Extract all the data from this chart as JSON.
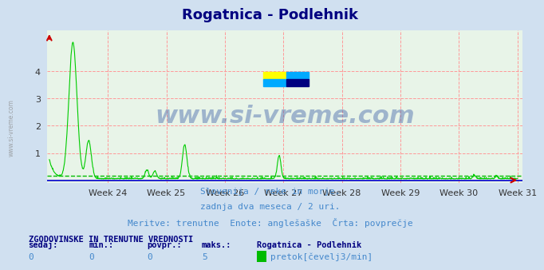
{
  "title": "Rogatnica - Podlehnik",
  "title_color": "#000080",
  "title_fontsize": 13,
  "bg_color": "#d0e0f0",
  "plot_bg_color": "#e8f4e8",
  "x_tick_labels": [
    "Week 24",
    "Week 25",
    "Week 26",
    "Week 27",
    "Week 28",
    "Week 29",
    "Week 30",
    "Week 31"
  ],
  "ylim": [
    0,
    5
  ],
  "yticks": [
    1,
    2,
    3,
    4
  ],
  "line_color": "#00cc00",
  "avg_line_color": "#00bb00",
  "avg_line_value": 0.18,
  "x_axis_color": "#0000cc",
  "grid_color": "#ff9999",
  "watermark_text": "www.si-vreme.com",
  "watermark_color": "#4466aa",
  "watermark_alpha": 0.45,
  "subtitle1": "Slovenija / reke in morje.",
  "subtitle2": "zadnja dva meseca / 2 uri.",
  "subtitle3": "Meritve: trenutne  Enote: anglešaške  Črta: povprečje",
  "subtitle_color": "#4488cc",
  "bottom_title": "ZGODOVINSKE IN TRENUTNE VREDNOSTI",
  "bottom_title_color": "#000080",
  "bottom_headers": [
    "sedaj:",
    "min.:",
    "povpr.:",
    "maks.:",
    "Rogatnica - Podlehnik"
  ],
  "bottom_values": [
    "0",
    "0",
    "0",
    "5",
    "pretok[čevelj3/min]"
  ],
  "legend_square_color": "#00bb00",
  "n_points": 1488,
  "logo_colors": [
    "#ffff00",
    "#00aaff",
    "#00aaff",
    "#000080"
  ]
}
